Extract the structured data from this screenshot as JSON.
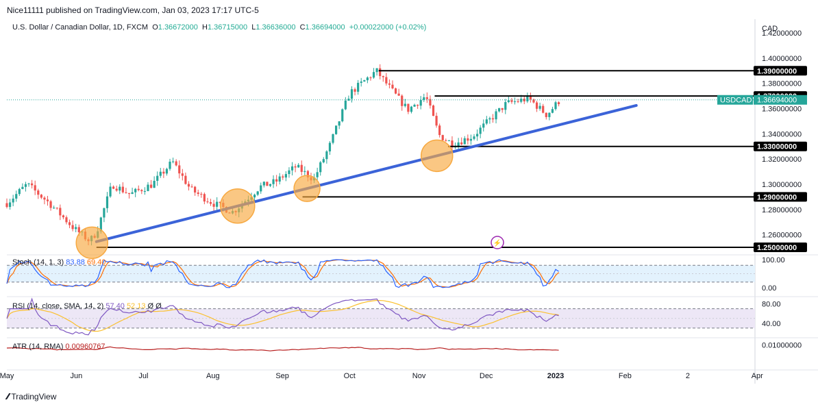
{
  "header": {
    "publish_line": "Nice11111 published on TradingView.com, Jan 03, 2023 17:17 UTC-5",
    "symbol": "U.S. Dollar / Canadian Dollar, 1D, FXCM",
    "ohlc": {
      "o_label": "O",
      "o": "1.36672000",
      "h_label": "H",
      "h": "1.36715000",
      "l_label": "L",
      "l": "1.36636000",
      "c_label": "C",
      "c": "1.36694000",
      "change": "+0.00022000 (+0.02%)"
    }
  },
  "footer": {
    "brand": "TradingView"
  },
  "colors": {
    "bull": "#26a69a",
    "bear": "#ef5350",
    "trendline": "#3b63d8",
    "level": "#000000",
    "circle": "#f7a941",
    "price_tag": "#26a69a",
    "stoch_k": "#2962ff",
    "stoch_d": "#ff6d00",
    "rsi": "#7e57c2",
    "rsi_ma": "#fbc02d",
    "atr": "#b71c1c",
    "band_stoch": "#e3f2fd",
    "band_rsi": "#ede7f6"
  },
  "chart_data": [
    {
      "type": "candlestick",
      "axis_label": "CAD",
      "y_ticks": [
        "1.42000000",
        "1.40000000",
        "1.38000000",
        "1.36000000",
        "1.34000000",
        "1.32000000",
        "1.30000000",
        "1.28000000",
        "1.26000000"
      ],
      "ylim": [
        1.2462,
        1.4309
      ],
      "x_ticks": [
        "May",
        "Jun",
        "Jul",
        "Aug",
        "Sep",
        "Oct",
        "Nov",
        "Dec",
        "2023",
        "Feb",
        "2",
        "Apr",
        "2"
      ],
      "horizontal_levels": [
        "1.39000000",
        "1.37000000",
        "1.33000000",
        "1.29000000",
        "1.25000000"
      ],
      "current_price": {
        "symbol_label": "USDCAD",
        "value": "1.36694000"
      },
      "trendline": {
        "from": [
          "2022-06-10",
          1.2545
        ],
        "to": [
          "2023-02-06",
          1.3625
        ]
      },
      "highlight_circles": [
        "2022-06-08",
        "2022-08-12",
        "2022-09-12",
        "2022-11-09"
      ],
      "approx_path": [
        [
          "2022-05-01",
          1.285
        ],
        [
          "2022-05-10",
          1.3
        ],
        [
          "2022-05-20",
          1.285
        ],
        [
          "2022-05-31",
          1.265
        ],
        [
          "2022-06-07",
          1.255
        ],
        [
          "2022-06-10",
          1.262
        ],
        [
          "2022-06-17",
          1.3
        ],
        [
          "2022-06-25",
          1.292
        ],
        [
          "2022-07-05",
          1.3
        ],
        [
          "2022-07-14",
          1.318
        ],
        [
          "2022-07-22",
          1.296
        ],
        [
          "2022-08-01",
          1.285
        ],
        [
          "2022-08-10",
          1.278
        ],
        [
          "2022-08-22",
          1.298
        ],
        [
          "2022-08-29",
          1.302
        ],
        [
          "2022-09-07",
          1.314
        ],
        [
          "2022-09-15",
          1.304
        ],
        [
          "2022-09-22",
          1.33
        ],
        [
          "2022-10-01",
          1.372
        ],
        [
          "2022-10-13",
          1.39
        ],
        [
          "2022-10-20",
          1.374
        ],
        [
          "2022-10-27",
          1.359
        ],
        [
          "2022-11-04",
          1.37
        ],
        [
          "2022-11-10",
          1.339
        ],
        [
          "2022-11-16",
          1.332
        ],
        [
          "2022-11-25",
          1.338
        ],
        [
          "2022-12-02",
          1.35
        ],
        [
          "2022-12-10",
          1.364
        ],
        [
          "2022-12-20",
          1.368
        ],
        [
          "2022-12-28",
          1.355
        ],
        [
          "2023-01-03",
          1.367
        ]
      ]
    },
    {
      "type": "line",
      "name_label": "Stoch (14, 1, 3)",
      "values": [
        "83.88",
        "69.40"
      ],
      "y_ticks": [
        "100.00",
        "0.00"
      ],
      "bands": [
        80,
        20
      ],
      "ylim": [
        0,
        100
      ]
    },
    {
      "type": "line",
      "name_label": "RSI (14, close, SMA, 14, 2)",
      "values": [
        "57.40",
        "52.13"
      ],
      "extra": "Ø Ø",
      "y_ticks": [
        "80.00",
        "40.00"
      ],
      "bands": [
        70,
        30
      ],
      "ylim": [
        20,
        85
      ]
    },
    {
      "type": "line",
      "name_label": "ATR (14, RMA)",
      "values": [
        "0.00960767"
      ],
      "y_ticks": [
        "0.01000000"
      ],
      "ylim": [
        0.0,
        0.016
      ]
    }
  ]
}
